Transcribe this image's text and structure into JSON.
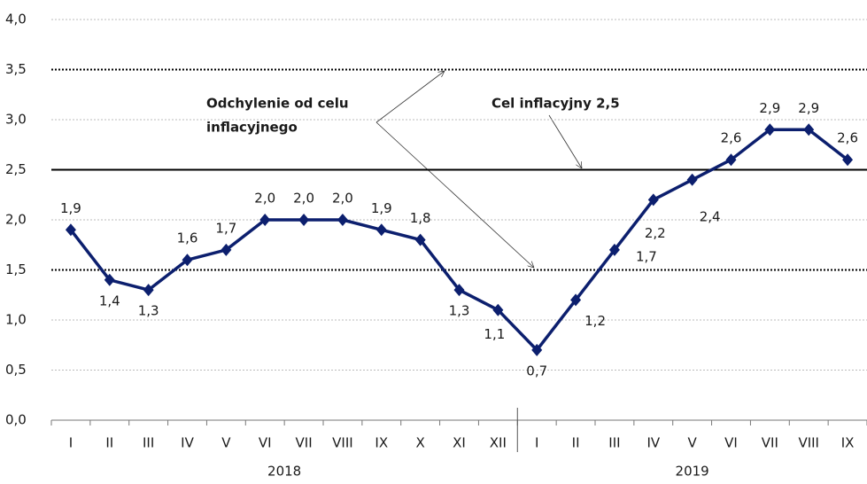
{
  "chart_data": {
    "type": "line",
    "categories": [
      "I",
      "II",
      "III",
      "IV",
      "V",
      "VI",
      "VII",
      "VIII",
      "IX",
      "X",
      "XI",
      "XII",
      "I",
      "II",
      "III",
      "IV",
      "V",
      "VI",
      "VII",
      "VIII",
      "IX"
    ],
    "groups": [
      {
        "label": "2018",
        "count": 12
      },
      {
        "label": "2019",
        "count": 9
      }
    ],
    "series": [
      {
        "color": "#0c1f6e",
        "values": [
          1.9,
          1.4,
          1.3,
          1.6,
          1.7,
          2.0,
          2.0,
          2.0,
          1.9,
          1.8,
          1.3,
          1.1,
          0.7,
          1.2,
          1.7,
          2.2,
          2.4,
          2.6,
          2.9,
          2.9,
          2.6
        ],
        "value_labels": [
          "1,9",
          "1,4",
          "1,3",
          "1,6",
          "1,7",
          "2,0",
          "2,0",
          "2,0",
          "1,9",
          "1,8",
          "1,3",
          "1,1",
          "0,7",
          "1,2",
          "1,7",
          "2,2",
          "2,4",
          "2,6",
          "2,9",
          "2,9",
          "2,6"
        ]
      }
    ],
    "ylim": [
      0,
      4
    ],
    "yticks": [
      {
        "value": 0,
        "label": "0,0"
      },
      {
        "value": 0.5,
        "label": "0,5"
      },
      {
        "value": 1,
        "label": "1,0"
      },
      {
        "value": 1.5,
        "label": "1,5"
      },
      {
        "value": 2,
        "label": "2,0"
      },
      {
        "value": 2.5,
        "label": "2,5"
      },
      {
        "value": 3,
        "label": "3,0"
      },
      {
        "value": 3.5,
        "label": "3,5"
      },
      {
        "value": 4,
        "label": "4,0"
      }
    ],
    "target": 2.5,
    "tolerance_band": [
      1.5,
      3.5
    ],
    "grid": true,
    "annotations": [
      "Odchylenie od celu",
      "inflacyjnego",
      "Cel inflacyjny 2,5"
    ]
  }
}
